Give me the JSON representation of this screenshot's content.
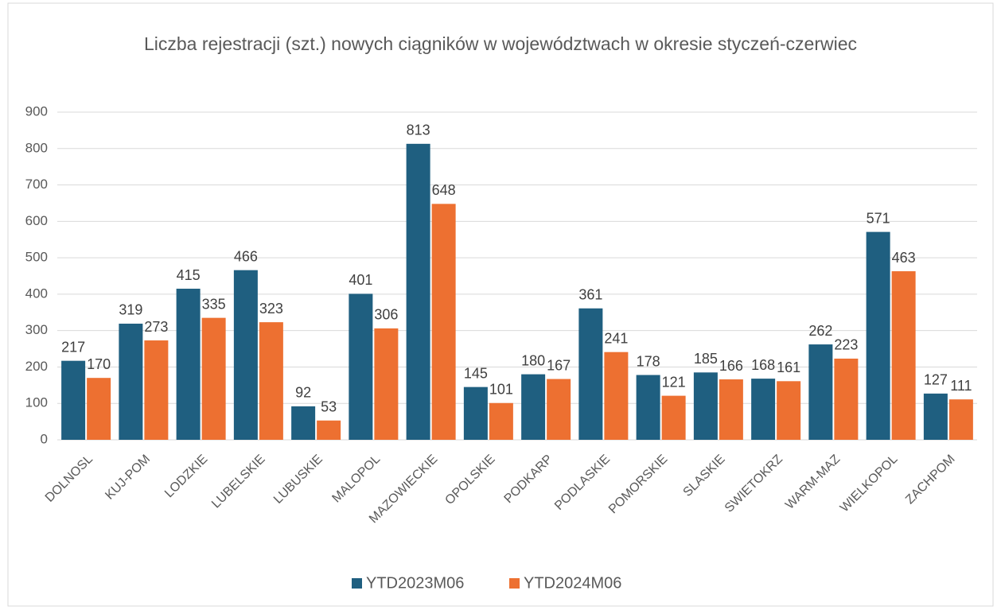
{
  "chart_data": {
    "type": "bar",
    "title": "Liczba rejestracji (szt.) nowych ciągników w województwach w okresie styczeń-czerwiec",
    "categories": [
      "DOLNOSL",
      "KUJ-POM",
      "LODZKIE",
      "LUBELSKIE",
      "LUBUSKIE",
      "MALOPOL",
      "MAZOWIECKIE",
      "OPOLSKIE",
      "PODKARP",
      "PODLASKIE",
      "POMORSKIE",
      "SLASKIE",
      "SWIETOKRZ",
      "WARM-MAZ",
      "WIELKOPOL",
      "ZACHPOM"
    ],
    "series": [
      {
        "name": "YTD2023M06",
        "color": "#1f5f80",
        "values": [
          217,
          319,
          415,
          466,
          92,
          401,
          813,
          145,
          180,
          361,
          178,
          185,
          168,
          262,
          571,
          127
        ]
      },
      {
        "name": "YTD2024M06",
        "color": "#ed7031",
        "values": [
          170,
          273,
          335,
          323,
          53,
          306,
          648,
          101,
          167,
          241,
          121,
          166,
          161,
          223,
          463,
          111
        ]
      }
    ],
    "ylim": [
      0,
      900
    ],
    "yticks": [
      0,
      100,
      200,
      300,
      400,
      500,
      600,
      700,
      800,
      900
    ],
    "grid": true,
    "legend": "bottom"
  }
}
